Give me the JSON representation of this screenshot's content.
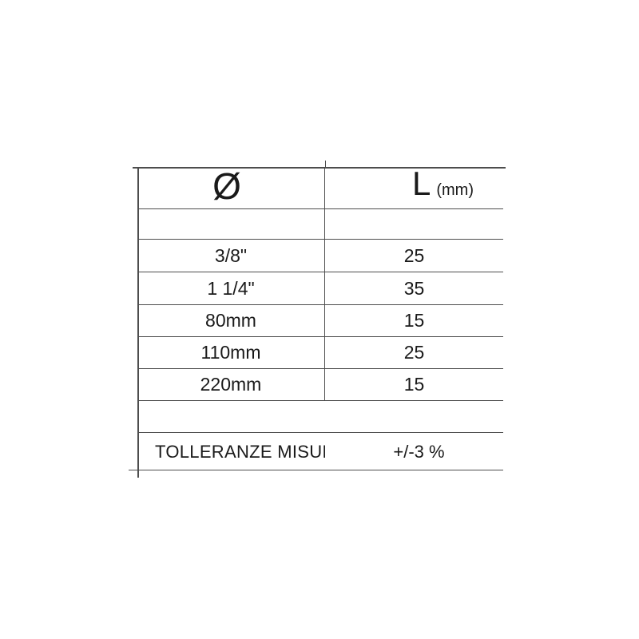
{
  "table": {
    "header": {
      "diameter_symbol": "Ø",
      "length_label": "L",
      "length_unit": "(mm)"
    },
    "rows": [
      {
        "diameter": "3/8\"",
        "length_mm": "25"
      },
      {
        "diameter": "1 1/4\"",
        "length_mm": "35"
      },
      {
        "diameter": "80mm",
        "length_mm": "15"
      },
      {
        "diameter": "110mm",
        "length_mm": "25"
      },
      {
        "diameter": "220mm",
        "length_mm": "15"
      }
    ],
    "tolerance": {
      "label": "TOLLERANZE MISURE",
      "value": "+/-3 %"
    }
  },
  "colors": {
    "line": "#4d4d4d",
    "text": "#1a1a1a",
    "background": "#ffffff"
  }
}
